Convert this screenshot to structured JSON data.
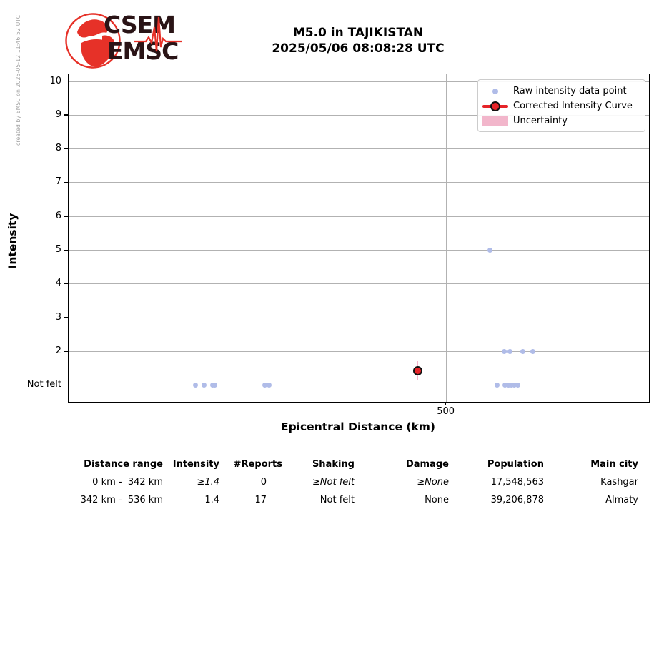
{
  "meta": {
    "created_by": "created by EMSC on 2025-05-12 11:46:52 UTC"
  },
  "logo": {
    "top_text": "CSEM",
    "bottom_text": "EMSC"
  },
  "header": {
    "title_line1": "M5.0 in TAJIKISTAN",
    "title_line2": "2025/05/06 08:08:28 UTC"
  },
  "colors": {
    "point_blue": "#b0bce8",
    "curve_red": "#e62429",
    "uncertainty_pink": "#f2b6cb",
    "grid_gray": "#b2b2b2",
    "logo_dark": "#2a1416",
    "logo_red": "#e63128",
    "watermark_gray": "#a3a3a3"
  },
  "chart_data": {
    "type": "scatter",
    "title": "",
    "xlabel": "Epicentral Distance (km)",
    "ylabel": "Intensity",
    "xlim": [
      0,
      768
    ],
    "ylim": [
      0.5,
      10.2
    ],
    "grid": true,
    "x_ticks": [
      {
        "value": 500,
        "label": "500"
      }
    ],
    "y_ticks": [
      {
        "value": 10,
        "label": "10"
      },
      {
        "value": 9,
        "label": "9"
      },
      {
        "value": 8,
        "label": "8"
      },
      {
        "value": 7,
        "label": "7"
      },
      {
        "value": 6,
        "label": "6"
      },
      {
        "value": 5,
        "label": "5"
      },
      {
        "value": 4,
        "label": "4"
      },
      {
        "value": 3,
        "label": "3"
      },
      {
        "value": 2,
        "label": "2"
      },
      {
        "value": 1,
        "label": "Not felt"
      }
    ],
    "legend": {
      "position": "upper right",
      "items": [
        {
          "marker": "dot",
          "label": "Raw intensity data point"
        },
        {
          "marker": "line-circle",
          "label": "Corrected Intensity Curve"
        },
        {
          "marker": "patch",
          "label": "Uncertainty"
        }
      ]
    },
    "series": [
      {
        "name": "Raw intensity data point",
        "type": "scatter",
        "points": [
          {
            "x": 168,
            "y": 1
          },
          {
            "x": 179,
            "y": 1
          },
          {
            "x": 191,
            "y": 1
          },
          {
            "x": 193,
            "y": 1
          },
          {
            "x": 260,
            "y": 1
          },
          {
            "x": 265,
            "y": 1
          },
          {
            "x": 558,
            "y": 5
          },
          {
            "x": 576,
            "y": 2
          },
          {
            "x": 584,
            "y": 2
          },
          {
            "x": 601,
            "y": 2
          },
          {
            "x": 614,
            "y": 2
          },
          {
            "x": 567,
            "y": 1
          },
          {
            "x": 577,
            "y": 1
          },
          {
            "x": 582,
            "y": 1
          },
          {
            "x": 586,
            "y": 1
          },
          {
            "x": 590,
            "y": 1
          },
          {
            "x": 594,
            "y": 1
          }
        ]
      },
      {
        "name": "Corrected Intensity Curve",
        "type": "line",
        "points": [
          {
            "x": 462,
            "y": 1.43,
            "uncertainty": 0.28
          }
        ]
      }
    ]
  },
  "table": {
    "headers": [
      "Distance range",
      "Intensity",
      "#Reports",
      "Shaking",
      "Damage",
      "Population",
      "Main city"
    ],
    "rows": [
      [
        "0 km -  342 km",
        "≥1.4",
        "0",
        "≥Not felt",
        "≥None",
        "17,548,563",
        "Kashgar"
      ],
      [
        "342 km -  536 km",
        "1.4",
        "17",
        "Not felt",
        "None",
        "39,206,878",
        "Almaty"
      ]
    ]
  }
}
